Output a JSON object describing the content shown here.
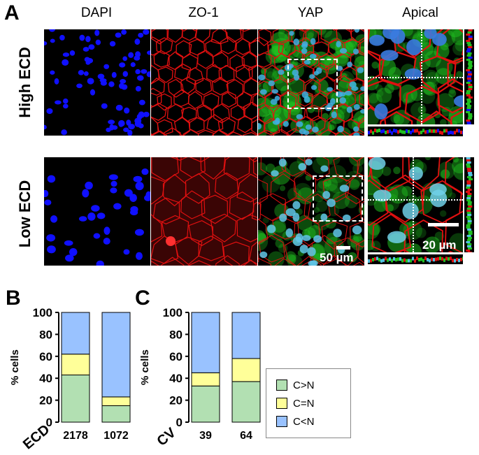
{
  "panelA": {
    "letter": "A",
    "columns": [
      "DAPI",
      "ZO-1",
      "YAP",
      "Apical"
    ],
    "rows": [
      "High ECD",
      "Low ECD"
    ],
    "scale_yap": "50 µm",
    "scale_apical": "20 µm"
  },
  "panelB": {
    "letter": "B"
  },
  "panelC": {
    "letter": "C"
  },
  "colors": {
    "c_gt_n": "#b2e0b2",
    "c_eq_n": "#ffff99",
    "c_lt_n": "#99c2ff",
    "dapi": "#1010ff",
    "zo1": "#e01010",
    "yap": "#20c020"
  },
  "chart_data": [
    {
      "type": "bar",
      "stacked": true,
      "categories": [
        "2178",
        "1072"
      ],
      "xlabel": "ECD",
      "ylabel": "% cells",
      "ylim": [
        0,
        100
      ],
      "yticks": [
        0,
        20,
        40,
        60,
        80,
        100
      ],
      "series": [
        {
          "name": "C>N",
          "color": "#b2e0b2",
          "values": [
            43,
            15
          ]
        },
        {
          "name": "C=N",
          "color": "#ffff99",
          "values": [
            19,
            8
          ]
        },
        {
          "name": "C<N",
          "color": "#99c2ff",
          "values": [
            38,
            77
          ]
        }
      ]
    },
    {
      "type": "bar",
      "stacked": true,
      "categories": [
        "39",
        "64"
      ],
      "xlabel": "CV",
      "ylabel": "% cells",
      "ylim": [
        0,
        100
      ],
      "yticks": [
        0,
        20,
        40,
        60,
        80,
        100
      ],
      "series": [
        {
          "name": "C>N",
          "color": "#b2e0b2",
          "values": [
            33,
            37
          ]
        },
        {
          "name": "C=N",
          "color": "#ffff99",
          "values": [
            12,
            21
          ]
        },
        {
          "name": "C<N",
          "color": "#99c2ff",
          "values": [
            55,
            42
          ]
        }
      ],
      "legend": [
        "C>N",
        "C=N",
        "C<N"
      ],
      "legend_position": "right"
    }
  ]
}
